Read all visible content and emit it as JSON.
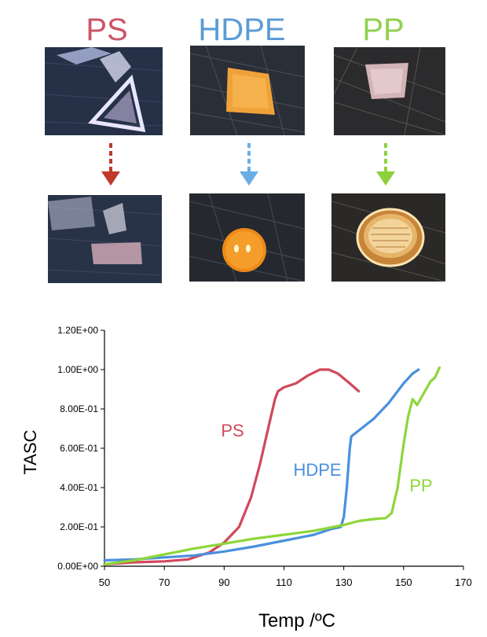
{
  "samples": [
    {
      "name": "PS",
      "color": "#cc5566",
      "arrow_color": "#c0392b"
    },
    {
      "name": "HDPE",
      "color": "#5b9bd5",
      "arrow_color": "#6aaee6"
    },
    {
      "name": "PP",
      "color": "#92d050",
      "arrow_color": "#8dd13a"
    }
  ],
  "chart_data": {
    "type": "line",
    "xlabel": "Temp /ºC",
    "ylabel": "TASC",
    "xlim": [
      50,
      170
    ],
    "ylim": [
      0,
      1.2
    ],
    "x_ticks": [
      "50",
      "70",
      "90",
      "110",
      "130",
      "150",
      "170"
    ],
    "y_ticks": [
      "0.00E+00",
      "2.00E-01",
      "4.00E-01",
      "6.00E-01",
      "8.00E-01",
      "1.00E+00",
      "1.20E+00"
    ],
    "grid": false,
    "legend": "inline labels",
    "series": [
      {
        "name": "PS",
        "color": "#d0485a",
        "points": [
          [
            50,
            0.01
          ],
          [
            60,
            0.02
          ],
          [
            70,
            0.025
          ],
          [
            78,
            0.035
          ],
          [
            85,
            0.07
          ],
          [
            90,
            0.12
          ],
          [
            95,
            0.2
          ],
          [
            99,
            0.35
          ],
          [
            102,
            0.52
          ],
          [
            105,
            0.72
          ],
          [
            107,
            0.85
          ],
          [
            108,
            0.89
          ],
          [
            110,
            0.91
          ],
          [
            114,
            0.93
          ],
          [
            118,
            0.97
          ],
          [
            122,
            1.0
          ],
          [
            125,
            1.0
          ],
          [
            128,
            0.98
          ],
          [
            132,
            0.93
          ],
          [
            135,
            0.89
          ]
        ],
        "label": "PS"
      },
      {
        "name": "HDPE",
        "color": "#4a90dd",
        "points": [
          [
            50,
            0.03
          ],
          [
            60,
            0.035
          ],
          [
            70,
            0.045
          ],
          [
            80,
            0.055
          ],
          [
            90,
            0.075
          ],
          [
            100,
            0.1
          ],
          [
            110,
            0.13
          ],
          [
            120,
            0.16
          ],
          [
            126,
            0.19
          ],
          [
            129,
            0.2
          ],
          [
            130,
            0.25
          ],
          [
            131,
            0.4
          ],
          [
            132,
            0.6
          ],
          [
            132.5,
            0.66
          ],
          [
            135,
            0.69
          ],
          [
            140,
            0.75
          ],
          [
            145,
            0.83
          ],
          [
            150,
            0.93
          ],
          [
            153,
            0.98
          ],
          [
            155,
            1.0
          ]
        ],
        "label": "HDPE"
      },
      {
        "name": "PP",
        "color": "#8ed63a",
        "points": [
          [
            50,
            0.01
          ],
          [
            60,
            0.03
          ],
          [
            70,
            0.06
          ],
          [
            80,
            0.09
          ],
          [
            90,
            0.115
          ],
          [
            100,
            0.14
          ],
          [
            110,
            0.16
          ],
          [
            120,
            0.18
          ],
          [
            130,
            0.21
          ],
          [
            135,
            0.23
          ],
          [
            140,
            0.24
          ],
          [
            144,
            0.245
          ],
          [
            146,
            0.27
          ],
          [
            148,
            0.4
          ],
          [
            150,
            0.62
          ],
          [
            151.5,
            0.76
          ],
          [
            153,
            0.85
          ],
          [
            154.5,
            0.82
          ],
          [
            156,
            0.86
          ],
          [
            157.5,
            0.9
          ],
          [
            159,
            0.94
          ],
          [
            160.5,
            0.96
          ],
          [
            162,
            1.01
          ]
        ],
        "label": "PP"
      }
    ]
  }
}
